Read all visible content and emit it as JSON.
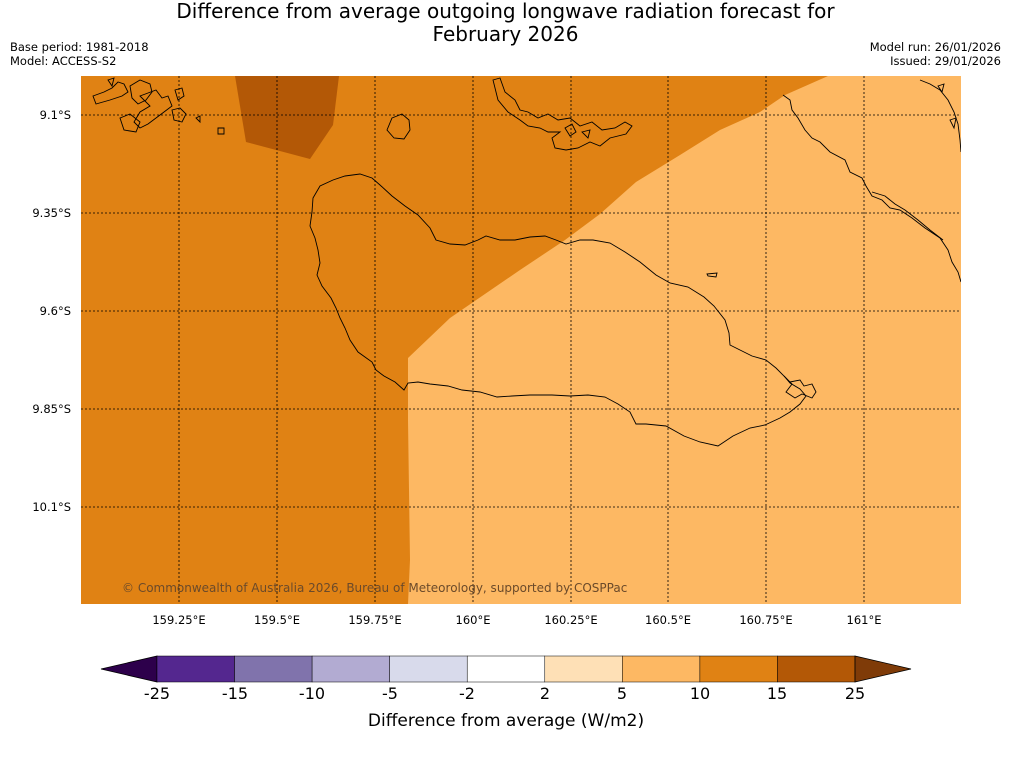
{
  "title_line1": "Difference from average outgoing longwave radiation forecast for",
  "title_line2": "February 2026",
  "meta": {
    "base_period": "Base period: 1981-2018",
    "model": "Model: ACCESS-S2",
    "model_run": "Model run: 26/01/2026",
    "issued": "Issued: 29/01/2026"
  },
  "map": {
    "lat_labels": [
      "9.1°S",
      "9.35°S",
      "9.6°S",
      "9.85°S",
      "10.1°S"
    ],
    "lon_labels": [
      "159.25°E",
      "159.5°E",
      "159.75°E",
      "160°E",
      "160.25°E",
      "160.5°E",
      "160.75°E",
      "161°E"
    ],
    "copyright": "© Commonwealth of Australia 2026, Bureau of Meteorology, supported by COSPPac"
  },
  "colorbar": {
    "ticks": [
      "-25",
      "-15",
      "-10",
      "-5",
      "-2",
      "2",
      "5",
      "10",
      "15",
      "25"
    ],
    "colors": [
      "#54278f",
      "#8073ac",
      "#b2abd2",
      "#d8daeb",
      "#ffffff",
      "#fee0b6",
      "#fdb863",
      "#e08214",
      "#b35806"
    ],
    "under_color": "#2d004b",
    "over_color": "#7f3b08",
    "label": "Difference from average (W/m2)"
  }
}
